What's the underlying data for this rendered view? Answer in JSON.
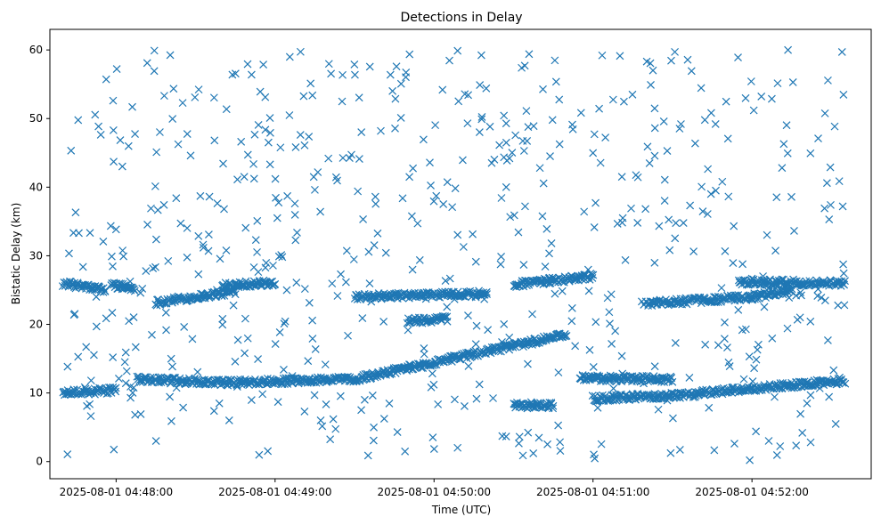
{
  "chart_data": {
    "type": "scatter",
    "title": "Detections in Delay",
    "xlabel": "Time (UTC)",
    "ylabel": "Bistatic Delay (km)",
    "x_tick_labels": [
      "2025-08-01 04:48:00",
      "2025-08-01 04:49:00",
      "2025-08-01 04:50:00",
      "2025-08-01 04:51:00",
      "2025-08-01 04:52:00"
    ],
    "y_ticks": [
      0,
      10,
      20,
      30,
      40,
      50,
      60
    ],
    "xlim": [
      "2025-08-01 04:47:35",
      "2025-08-01 04:52:45"
    ],
    "ylim": [
      -2.5,
      63
    ],
    "marker": "x",
    "color": "#1f77b4",
    "grid": false,
    "series": [
      {
        "tracks": [
          {
            "x_start": "2025-08-01 04:47:40",
            "x_end": "2025-08-01 04:47:56",
            "y_start": 26.0,
            "y_end": 25.0
          },
          {
            "x_start": "2025-08-01 04:47:58",
            "x_end": "2025-08-01 04:48:07",
            "y_start": 25.8,
            "y_end": 25.2
          },
          {
            "x_start": "2025-08-01 04:48:15",
            "x_end": "2025-08-01 04:48:45",
            "y_start": 23.2,
            "y_end": 24.8
          },
          {
            "x_start": "2025-08-01 04:48:40",
            "x_end": "2025-08-01 04:49:00",
            "y_start": 25.8,
            "y_end": 26.0
          },
          {
            "x_start": "2025-08-01 04:50:30",
            "x_end": "2025-08-01 04:51:00",
            "y_start": 25.8,
            "y_end": 27.0
          },
          {
            "x_start": "2025-08-01 04:51:20",
            "x_end": "2025-08-01 04:52:00",
            "y_start": 23.0,
            "y_end": 24.0
          },
          {
            "x_start": "2025-08-01 04:51:55",
            "x_end": "2025-08-01 04:52:35",
            "y_start": 26.2,
            "y_end": 26.0
          },
          {
            "x_start": "2025-08-01 04:52:00",
            "x_end": "2025-08-01 04:52:15",
            "y_start": 24.0,
            "y_end": 25.0
          },
          {
            "x_start": "2025-08-01 04:47:40",
            "x_end": "2025-08-01 04:48:00",
            "y_start": 10.0,
            "y_end": 10.4
          },
          {
            "x_start": "2025-08-01 04:48:08",
            "x_end": "2025-08-01 04:48:40",
            "y_start": 12.0,
            "y_end": 11.5
          },
          {
            "x_start": "2025-08-01 04:48:40",
            "x_end": "2025-08-01 04:49:30",
            "y_start": 11.5,
            "y_end": 12.0
          },
          {
            "x_start": "2025-08-01 04:49:30",
            "x_end": "2025-08-01 04:50:50",
            "y_start": 12.0,
            "y_end": 18.5
          },
          {
            "x_start": "2025-08-01 04:50:55",
            "x_end": "2025-08-01 04:51:30",
            "y_start": 12.2,
            "y_end": 12.0
          },
          {
            "x_start": "2025-08-01 04:51:00",
            "x_end": "2025-08-01 04:51:40",
            "y_start": 9.2,
            "y_end": 9.8
          },
          {
            "x_start": "2025-08-01 04:51:40",
            "x_end": "2025-08-01 04:52:35",
            "y_start": 10.0,
            "y_end": 11.8
          },
          {
            "x_start": "2025-08-01 04:49:50",
            "x_end": "2025-08-01 04:50:05",
            "y_start": 20.5,
            "y_end": 20.8
          },
          {
            "x_start": "2025-08-01 04:50:30",
            "x_end": "2025-08-01 04:50:45",
            "y_start": 8.2,
            "y_end": 8.2
          },
          {
            "x_start": "2025-08-01 04:49:30",
            "x_end": "2025-08-01 04:50:20",
            "y_start": 24.0,
            "y_end": 24.5
          }
        ],
        "clutter_y_range": [
          0,
          60
        ],
        "clutter_count": 620
      }
    ]
  }
}
